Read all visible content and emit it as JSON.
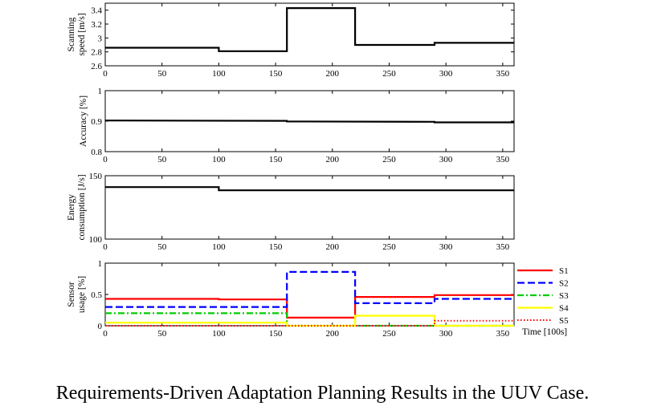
{
  "caption": "Requirements-Driven Adaptation Planning Results in the UUV Case.",
  "chart_data": [
    {
      "type": "line",
      "ylabel": [
        "Scanning",
        "speed [m/s]"
      ],
      "xlim": [
        0,
        360
      ],
      "ylim": [
        2.6,
        3.5
      ],
      "xticks": [
        0,
        50,
        100,
        150,
        200,
        250,
        300,
        350
      ],
      "yticks": [
        2.6,
        2.8,
        3,
        3.2,
        3.4
      ],
      "ytick_labels": [
        "2.6",
        "2.8",
        "3",
        "3.2",
        "3.4"
      ],
      "series": [
        {
          "color": "#000000",
          "dash": "solid",
          "points": [
            [
              0,
              2.86
            ],
            [
              100,
              2.86
            ],
            [
              100,
              2.81
            ],
            [
              160,
              2.81
            ],
            [
              160,
              3.43
            ],
            [
              220,
              3.43
            ],
            [
              220,
              2.9
            ],
            [
              290,
              2.9
            ],
            [
              290,
              2.93
            ],
            [
              360,
              2.93
            ]
          ]
        }
      ]
    },
    {
      "type": "line",
      "ylabel": [
        "Accuracy [%]"
      ],
      "xlim": [
        0,
        360
      ],
      "ylim": [
        0.8,
        1
      ],
      "xticks": [
        0,
        50,
        100,
        150,
        200,
        250,
        300,
        350
      ],
      "yticks": [
        0.8,
        0.9,
        1
      ],
      "ytick_labels": [
        "0.8",
        "0.9",
        "1"
      ],
      "series": [
        {
          "color": "#000000",
          "dash": "solid",
          "points": [
            [
              0,
              0.902
            ],
            [
              160,
              0.901
            ],
            [
              160,
              0.899
            ],
            [
              290,
              0.898
            ],
            [
              290,
              0.896
            ],
            [
              360,
              0.896
            ]
          ]
        }
      ]
    },
    {
      "type": "line",
      "ylabel": [
        "Energy",
        "consumption [J/s]"
      ],
      "xlim": [
        0,
        360
      ],
      "ylim": [
        100,
        150
      ],
      "xticks": [
        0,
        50,
        100,
        150,
        200,
        250,
        300,
        350
      ],
      "yticks": [
        100,
        150
      ],
      "ytick_labels": [
        "100",
        "150"
      ],
      "series": [
        {
          "color": "#000000",
          "dash": "solid",
          "points": [
            [
              0,
              141
            ],
            [
              100,
              141
            ],
            [
              100,
              138.5
            ],
            [
              360,
              138.5
            ]
          ]
        }
      ]
    },
    {
      "type": "line",
      "ylabel": [
        "Sensor",
        "usage [%]"
      ],
      "xlabel": "Time [100s]",
      "xlim": [
        0,
        360
      ],
      "ylim": [
        0,
        1
      ],
      "xticks": [
        0,
        50,
        100,
        150,
        200,
        250,
        300,
        350
      ],
      "yticks": [
        0,
        0.5,
        1
      ],
      "ytick_labels": [
        "0",
        "0.5",
        "1"
      ],
      "legend": "outside-right",
      "series": [
        {
          "name": "S1",
          "color": "#ff0000",
          "dash": "solid",
          "points": [
            [
              0,
              0.43
            ],
            [
              100,
              0.43
            ],
            [
              100,
              0.42
            ],
            [
              160,
              0.42
            ],
            [
              160,
              0.13
            ],
            [
              220,
              0.13
            ],
            [
              220,
              0.46
            ],
            [
              290,
              0.46
            ],
            [
              290,
              0.49
            ],
            [
              360,
              0.49
            ]
          ]
        },
        {
          "name": "S2",
          "color": "#0000ff",
          "dash": "dashed",
          "points": [
            [
              0,
              0.3
            ],
            [
              160,
              0.3
            ],
            [
              160,
              0.86
            ],
            [
              220,
              0.86
            ],
            [
              220,
              0.36
            ],
            [
              290,
              0.36
            ],
            [
              290,
              0.43
            ],
            [
              360,
              0.43
            ]
          ]
        },
        {
          "name": "S3",
          "color": "#00cc00",
          "dash": "dashdot",
          "points": [
            [
              0,
              0.2
            ],
            [
              160,
              0.2
            ],
            [
              160,
              0
            ],
            [
              360,
              0
            ]
          ]
        },
        {
          "name": "S4",
          "color": "#ffff00",
          "dash": "solid",
          "points": [
            [
              0,
              0.05
            ],
            [
              160,
              0.05
            ],
            [
              160,
              0
            ],
            [
              220,
              0
            ],
            [
              220,
              0.16
            ],
            [
              290,
              0.16
            ],
            [
              290,
              0
            ],
            [
              360,
              0
            ]
          ]
        },
        {
          "name": "S5",
          "color": "#ff0000",
          "dash": "dotted",
          "points": [
            [
              0,
              0
            ],
            [
              290,
              0
            ],
            [
              290,
              0.08
            ],
            [
              360,
              0.08
            ]
          ]
        }
      ]
    }
  ]
}
